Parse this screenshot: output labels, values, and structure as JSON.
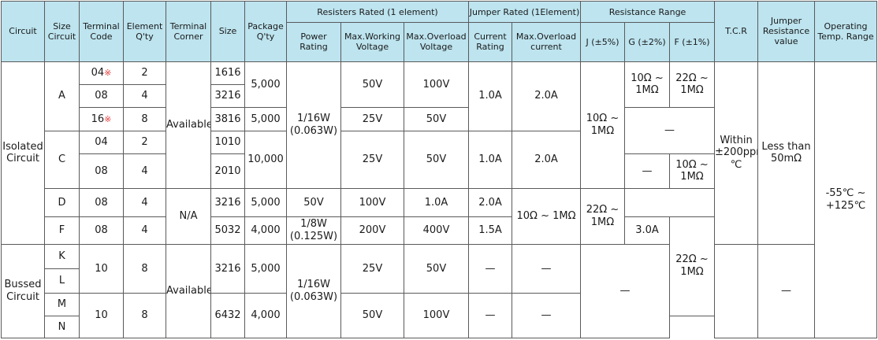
{
  "headers": {
    "circuit": "Circuit",
    "size_circuit": "Size Circuit",
    "terminal_code": "Terminal Code",
    "element_qty": "Element Q'ty",
    "terminal_corner": "Terminal Corner",
    "size": "Size",
    "package_qty": "Package Q'ty",
    "resisters_rated": "Resisters Rated (1 element)",
    "jumper_rated": "Jumper Rated (1Element)",
    "resistance_range": "Resistance Range",
    "tcr": "T.C.R",
    "jumper_resistance": "Jumper Resistance value",
    "operating_temp": "Operating Temp. Range",
    "power_rating": "Power Rating",
    "max_working_voltage": "Max.Working Voltage",
    "max_overload_voltage": "Max.Overload Voltage",
    "current_rating": "Current Rating",
    "max_overload_current": "Max.Overload current",
    "j": "J (±5%)",
    "g": "G (±2%)",
    "f": "F (±1%)"
  },
  "isolated": {
    "label": "Isolated Circuit",
    "a_size": "A",
    "a_rows": [
      {
        "code": "04",
        "mark": "※",
        "qty": "2",
        "size": "1616"
      },
      {
        "code": "08",
        "mark": "",
        "qty": "4",
        "size": "3216"
      },
      {
        "code": "16",
        "mark": "※",
        "qty": "8",
        "size": "3816"
      }
    ],
    "a_pkg": "5,000",
    "available": "Available",
    "power_116": "1/16W (0.063W)",
    "a_v1": "50V",
    "a_o1": "100V",
    "a_v2": "25V",
    "a_o2": "50V",
    "a_current": "1.0A",
    "a_overload_current": "2.0A",
    "j_range": "10Ω ~ 1MΩ",
    "a_g": "10Ω ~ 1MΩ",
    "a_f": "22Ω ~ 1MΩ",
    "dash_gf": "—",
    "c_size": "C",
    "c_rows": [
      {
        "code": "04",
        "qty": "2",
        "size": "1010"
      },
      {
        "code": "08",
        "qty": "4",
        "size": "2010"
      }
    ],
    "c_pkg": "10,000",
    "c_v": "25V",
    "c_o": "50V",
    "c_current": "1.0A",
    "c_overload_current": "2.0A",
    "c_g_dash": "—",
    "c_f": "10Ω ~ 1MΩ",
    "d_size": "D",
    "d_code": "08",
    "d_qty": "4",
    "na": "N/A",
    "d_dim": "3216",
    "d_pkg": "5,000",
    "d_v": "50V",
    "d_o": "100V",
    "d_current": "1.0A",
    "d_overload_current": "2.0A",
    "df_g": "10Ω ~ 1MΩ",
    "df_f": "22Ω ~ 1MΩ",
    "f_size": "F",
    "f_code": "08",
    "f_qty": "4",
    "f_dim": "5032",
    "f_pkg": "4,000",
    "f_power": "1/8W (0.125W)",
    "f_v": "200V",
    "f_o": "400V",
    "f_current": "1.5A",
    "f_overload_current": "3.0A",
    "tcr": "Within ±200ppm/℃",
    "jumper_value": "Less than 50mΩ",
    "temp_range": "-55℃ ~ +125℃"
  },
  "bussed": {
    "label": "Bussed Circuit",
    "k": "K",
    "l": "L",
    "m": "M",
    "n": "N",
    "kl_code": "10",
    "kl_qty": "8",
    "available": "Available",
    "kl_dim": "3216",
    "kl_pkg": "5,000",
    "power": "1/16W (0.063W)",
    "kl_v": "25V",
    "kl_o": "50V",
    "kl_current": "—",
    "kl_overload_current": "—",
    "mn_code": "10",
    "mn_qty": "8",
    "mn_dim": "6432",
    "mn_pkg": "4,000",
    "mn_v": "50V",
    "mn_o": "100V",
    "mn_current": "—",
    "mn_overload_current": "—",
    "j_range": "22Ω ~ 1MΩ",
    "gf_dash": "—",
    "jumper_dash": "—"
  }
}
